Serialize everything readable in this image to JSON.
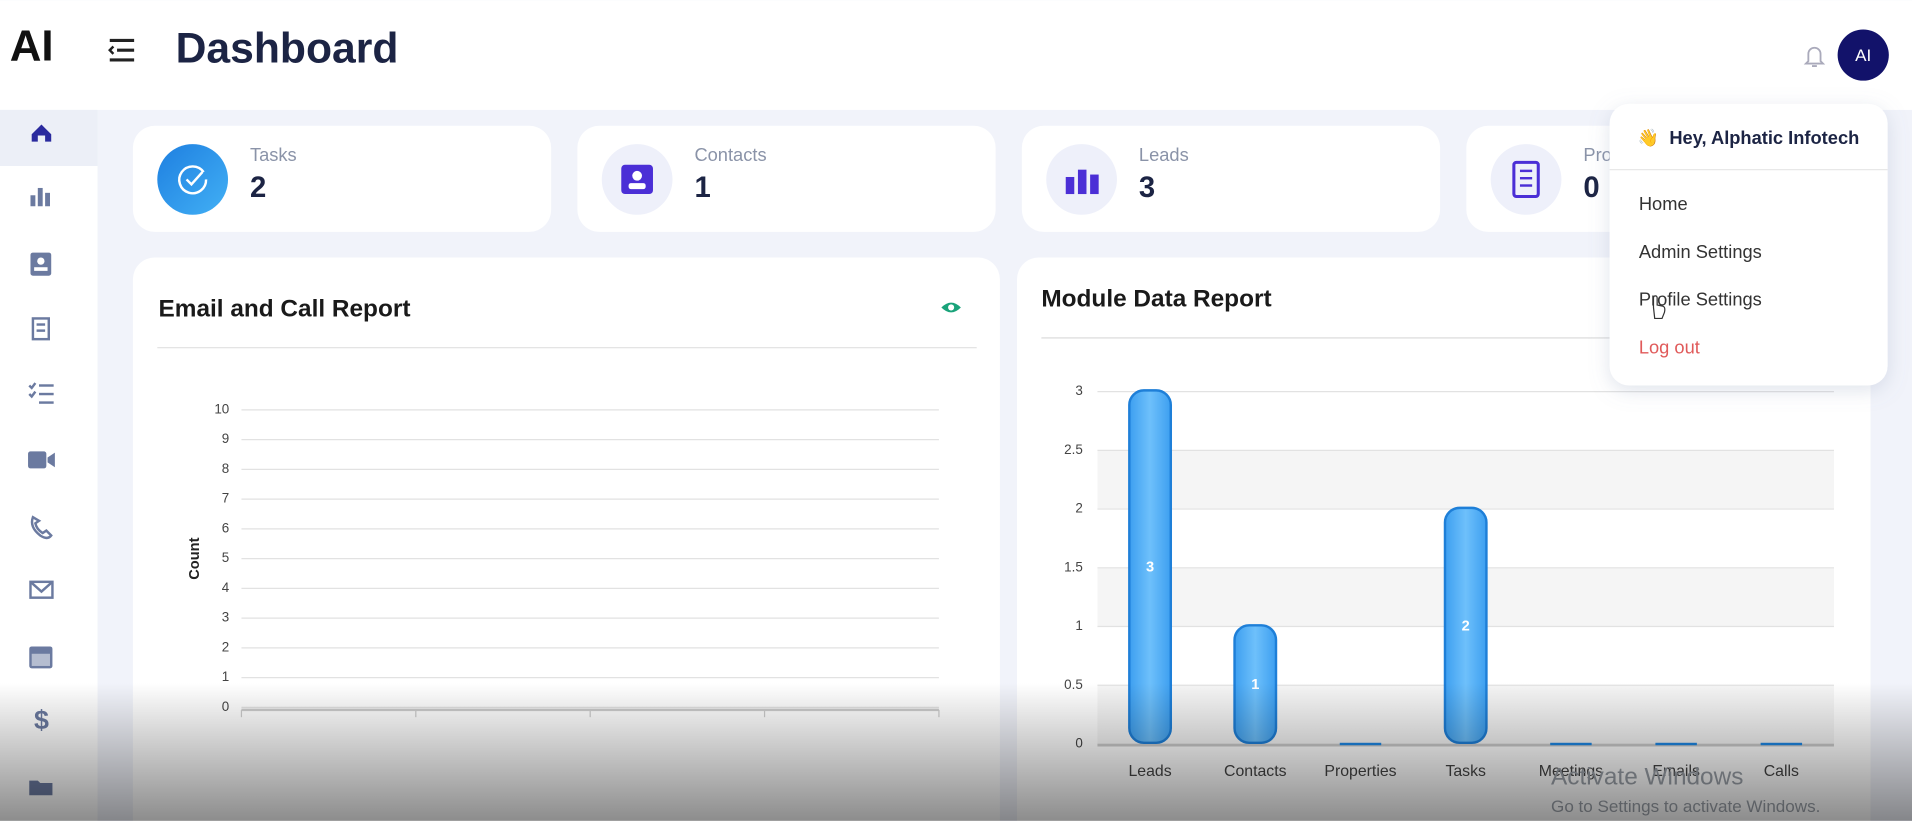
{
  "header": {
    "logo": "AI",
    "title": "Dashboard",
    "avatar": "AI"
  },
  "stats": [
    {
      "label": "Tasks",
      "value": 2
    },
    {
      "label": "Contacts",
      "value": 1
    },
    {
      "label": "Leads",
      "value": 3
    },
    {
      "label": "Pro",
      "value": 0
    }
  ],
  "chart_data": [
    {
      "type": "line",
      "title": "Email and Call Report",
      "y_label": "Count",
      "series": [],
      "ylim": [
        0,
        10
      ],
      "yticks": [
        0,
        1,
        2,
        3,
        4,
        5,
        6,
        7,
        8,
        9,
        10
      ],
      "grid": true
    },
    {
      "type": "bar",
      "title": "Module Data Report",
      "categories": [
        "Leads",
        "Contacts",
        "Properties",
        "Tasks",
        "Meetings",
        "Emails",
        "Calls"
      ],
      "values": [
        3,
        1,
        0,
        2,
        0,
        0,
        0
      ],
      "color": "#42a5f5",
      "ylim": [
        0,
        3
      ],
      "yticks": [
        0,
        0.5,
        1,
        1.5,
        2,
        2.5,
        3
      ],
      "grid": true
    }
  ],
  "menu": {
    "greeting": "Hey, Alphatic Infotech",
    "items": [
      "Home",
      "Admin Settings",
      "Profile Settings"
    ],
    "logout": "Log out"
  },
  "watermark": {
    "title": "Activate Windows",
    "subtitle": "Go to Settings to activate Windows."
  }
}
